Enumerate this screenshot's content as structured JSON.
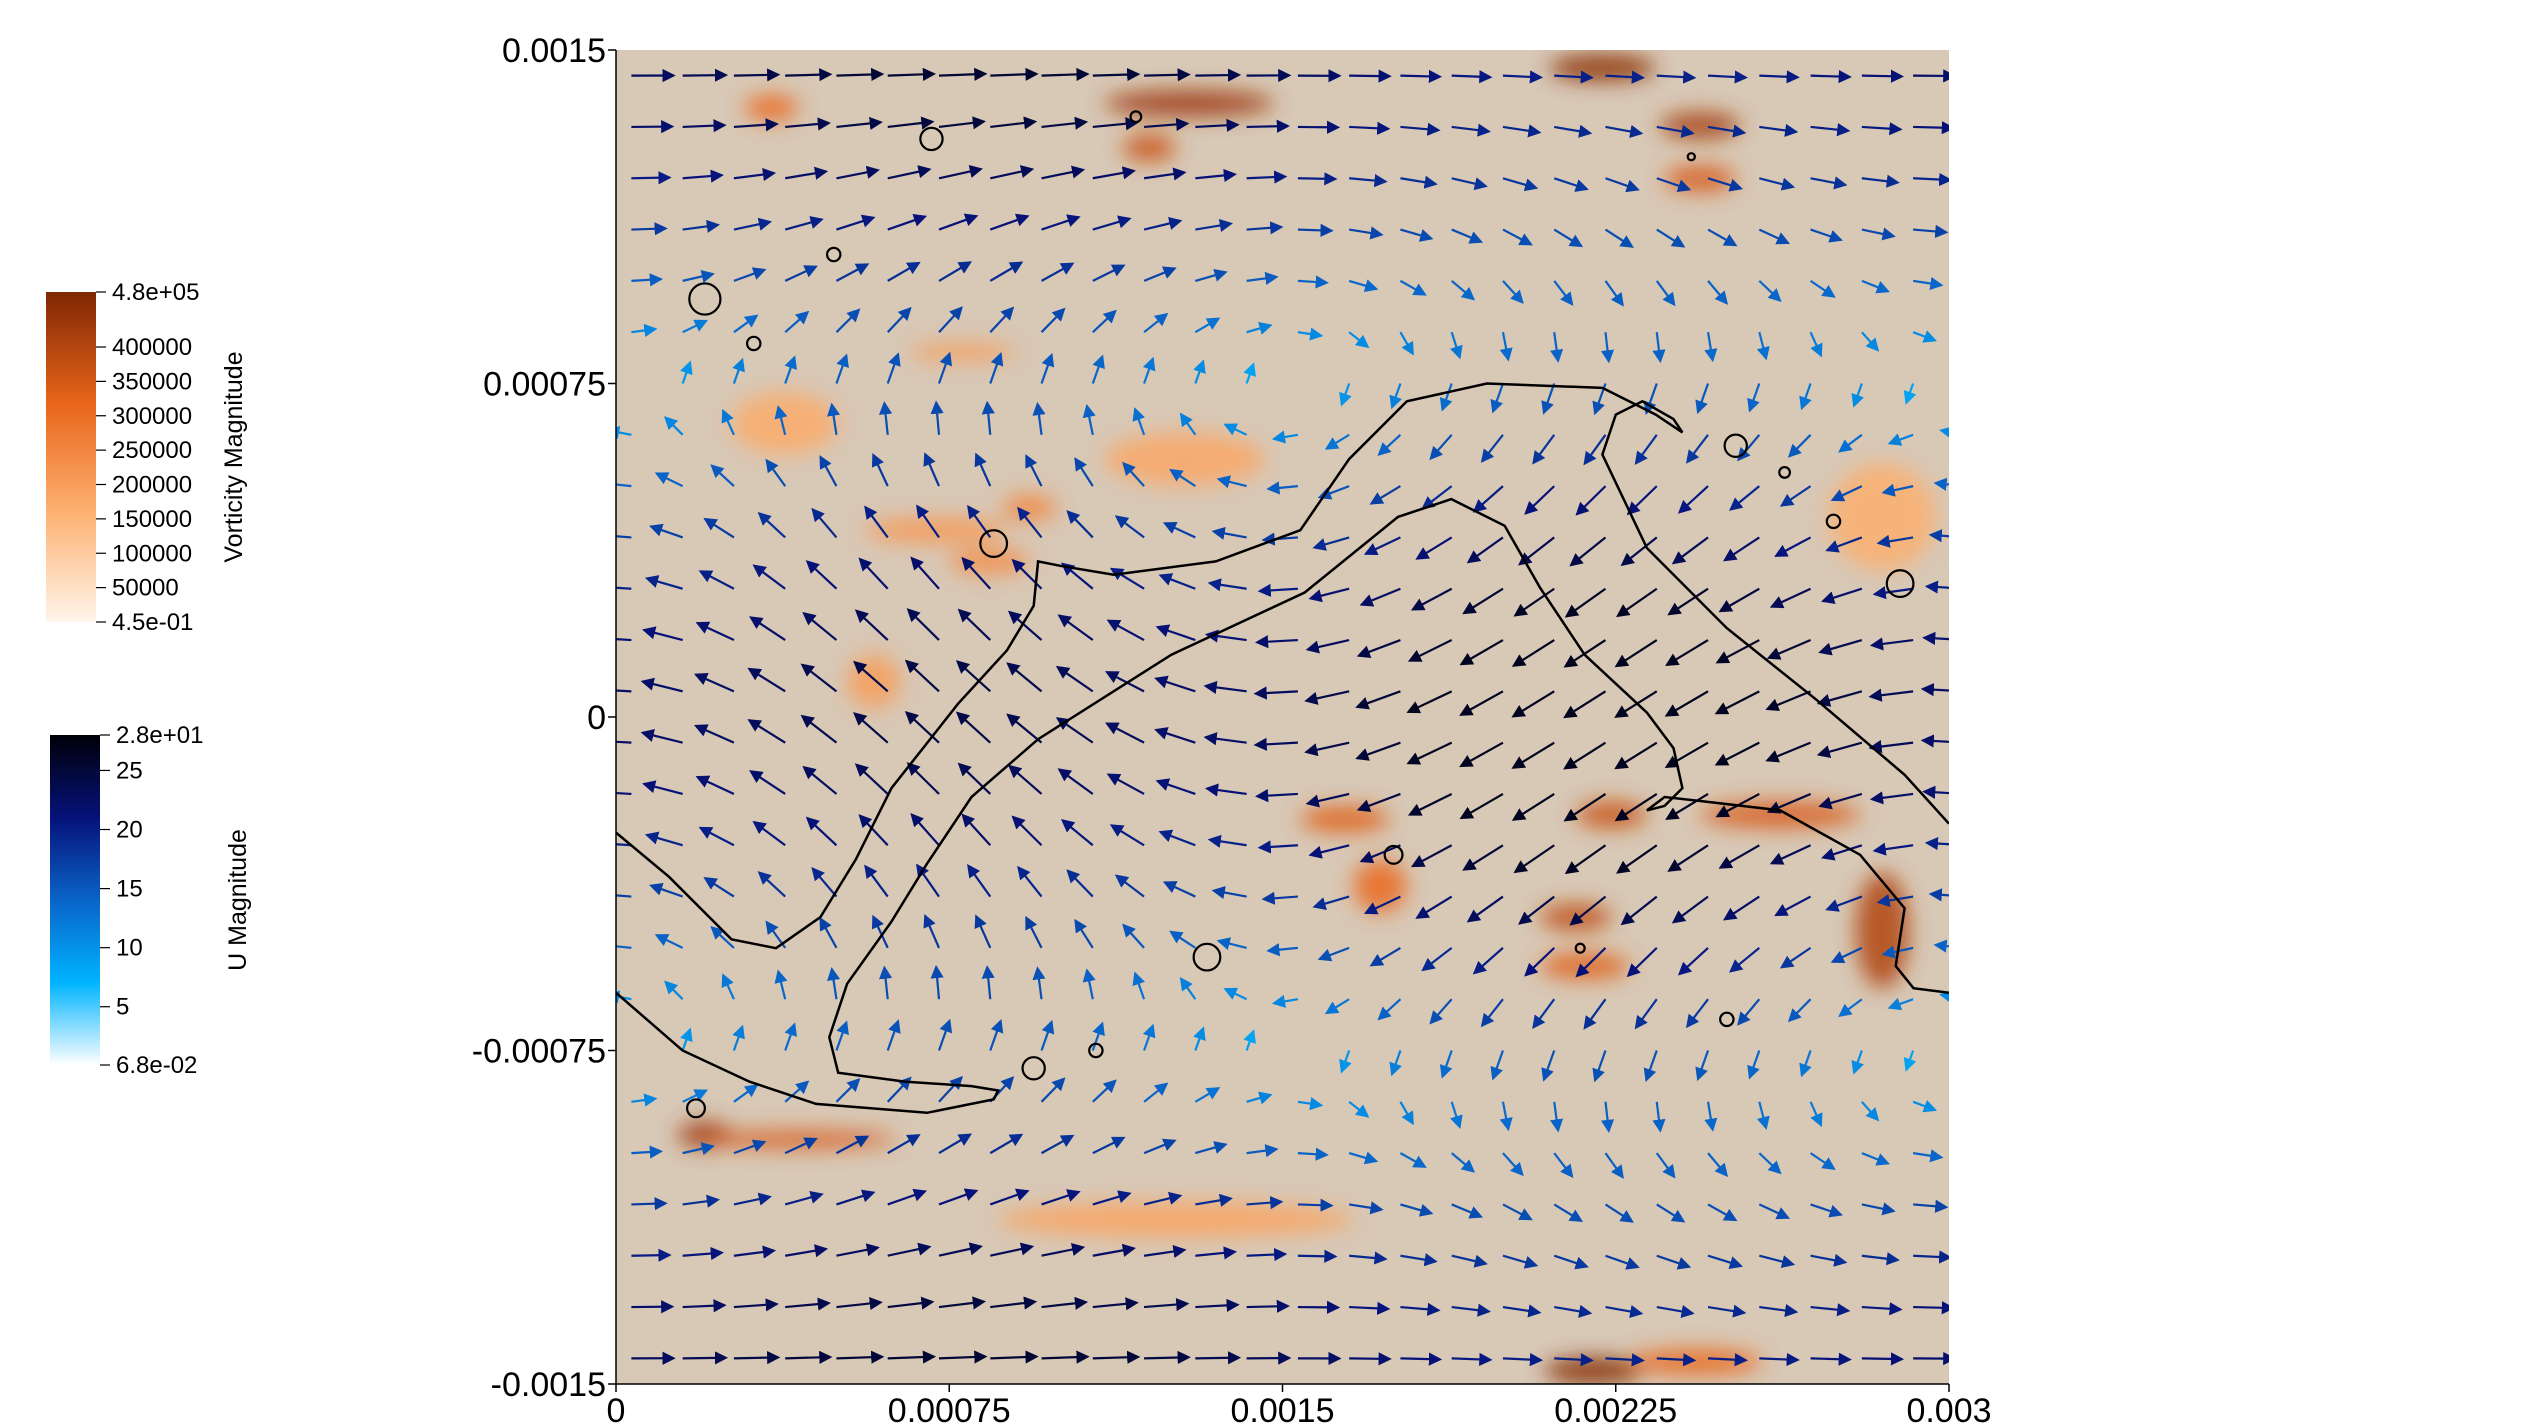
{
  "chart_data": {
    "type": "heatmap",
    "title": "",
    "xlabel": "",
    "ylabel": "",
    "xlim": [
      0,
      0.003
    ],
    "ylim": [
      -0.0015,
      0.0015
    ],
    "x_ticks": [
      {
        "value": 0,
        "label": "0"
      },
      {
        "value": 0.00075,
        "label": "0.00075"
      },
      {
        "value": 0.0015,
        "label": "0.0015"
      },
      {
        "value": 0.00225,
        "label": "0.00225"
      },
      {
        "value": 0.003,
        "label": "0.003"
      }
    ],
    "y_ticks": [
      {
        "value": 0.0015,
        "label": "0.0015"
      },
      {
        "value": 0.00075,
        "label": "0.00075"
      },
      {
        "value": 0,
        "label": "0"
      },
      {
        "value": -0.00075,
        "label": "-0.00075"
      },
      {
        "value": -0.0015,
        "label": "-0.0015"
      }
    ],
    "grid": false,
    "background_color": "#d8c8b6",
    "colorbars": [
      {
        "title": "Vorticity Magnitude",
        "range": [
          0.45,
          480000
        ],
        "colors": [
          "#fff5eb",
          "#fdb171",
          "#e8641a",
          "#7f2704"
        ],
        "labels": [
          {
            "value": 480000,
            "label": "4.8e+05"
          },
          {
            "value": 400000,
            "label": "400000"
          },
          {
            "value": 350000,
            "label": "350000"
          },
          {
            "value": 300000,
            "label": "300000"
          },
          {
            "value": 250000,
            "label": "250000"
          },
          {
            "value": 200000,
            "label": "200000"
          },
          {
            "value": 150000,
            "label": "150000"
          },
          {
            "value": 100000,
            "label": "100000"
          },
          {
            "value": 50000,
            "label": "50000"
          },
          {
            "value": 0.45,
            "label": "4.5e-01"
          }
        ]
      },
      {
        "title": "U Magnitude",
        "range": [
          0.068,
          28
        ],
        "colors": [
          "#ffffff",
          "#00b4ff",
          "#0a64c8",
          "#06127a",
          "#000008"
        ],
        "labels": [
          {
            "value": 28,
            "label": "2.8e+01"
          },
          {
            "value": 25,
            "label": "25"
          },
          {
            "value": 20,
            "label": "20"
          },
          {
            "value": 15,
            "label": "15"
          },
          {
            "value": 10,
            "label": "10"
          },
          {
            "value": 5,
            "label": "5"
          },
          {
            "value": 0.068,
            "label": "6.8e-02"
          }
        ]
      }
    ],
    "vorticity_patches": [
      {
        "x": 0.00035,
        "y": 0.00137,
        "rx": 6e-05,
        "ry": 3e-05,
        "value": 250000
      },
      {
        "x": 0.00129,
        "y": 0.00138,
        "rx": 0.00019,
        "ry": 3e-05,
        "value": 420000
      },
      {
        "x": 0.0012,
        "y": 0.00128,
        "rx": 6e-05,
        "ry": 3e-05,
        "value": 330000
      },
      {
        "x": 0.00222,
        "y": 0.00146,
        "rx": 0.00012,
        "ry": 3e-05,
        "value": 460000
      },
      {
        "x": 0.00244,
        "y": 0.00133,
        "rx": 9e-05,
        "ry": 3e-05,
        "value": 400000
      },
      {
        "x": 0.00244,
        "y": 0.00121,
        "rx": 8e-05,
        "ry": 3e-05,
        "value": 300000
      },
      {
        "x": 0.00078,
        "y": 0.00082,
        "rx": 0.00012,
        "ry": 2e-05,
        "value": 110000
      },
      {
        "x": 0.00128,
        "y": 0.00058,
        "rx": 0.00018,
        "ry": 6e-05,
        "value": 80000
      },
      {
        "x": 0.00072,
        "y": 0.00042,
        "rx": 0.00016,
        "ry": 3e-05,
        "value": 120000
      },
      {
        "x": 0.00084,
        "y": 0.00035,
        "rx": 9e-05,
        "ry": 3e-05,
        "value": 150000
      },
      {
        "x": 0.00058,
        "y": 8e-05,
        "rx": 6e-05,
        "ry": 6e-05,
        "value": 110000
      },
      {
        "x": 0.00093,
        "y": 0.00047,
        "rx": 6e-05,
        "ry": 3e-05,
        "value": 170000
      },
      {
        "x": 0.00164,
        "y": -0.00023,
        "rx": 0.0001,
        "ry": 3e-05,
        "value": 280000
      },
      {
        "x": 0.00172,
        "y": -0.00038,
        "rx": 6e-05,
        "ry": 6e-05,
        "value": 250000
      },
      {
        "x": 0.00216,
        "y": -0.00045,
        "rx": 8e-05,
        "ry": 3e-05,
        "value": 350000
      },
      {
        "x": 0.00218,
        "y": -0.00056,
        "rx": 0.0001,
        "ry": 3e-05,
        "value": 280000
      },
      {
        "x": 0.00224,
        "y": -0.00022,
        "rx": 8e-05,
        "ry": 3e-05,
        "value": 330000
      },
      {
        "x": 0.00262,
        "y": -0.00022,
        "rx": 0.00018,
        "ry": 3e-05,
        "value": 300000
      },
      {
        "x": 0.00285,
        "y": -0.00048,
        "rx": 6e-05,
        "ry": 0.00013,
        "value": 380000
      },
      {
        "x": 0.0002,
        "y": -0.00094,
        "rx": 6e-05,
        "ry": 3e-05,
        "value": 420000
      },
      {
        "x": 0.00041,
        "y": -0.00095,
        "rx": 0.00022,
        "ry": 2e-05,
        "value": 300000
      },
      {
        "x": 0.00126,
        "y": -0.00113,
        "rx": 0.0004,
        "ry": 4e-05,
        "value": 90000
      },
      {
        "x": 0.0022,
        "y": -0.00147,
        "rx": 0.00011,
        "ry": 3e-05,
        "value": 470000
      },
      {
        "x": 0.00243,
        "y": -0.00145,
        "rx": 0.00015,
        "ry": 3e-05,
        "value": 250000
      },
      {
        "x": 0.00038,
        "y": 0.00066,
        "rx": 0.00012,
        "ry": 7e-05,
        "value": 70000
      },
      {
        "x": 0.00285,
        "y": 0.00045,
        "rx": 0.00012,
        "ry": 0.00012,
        "value": 60000
      }
    ],
    "contours": [
      [
        [
          0,
          -0.00026
        ],
        [
          0.00012,
          -0.00036
        ],
        [
          0.00026,
          -0.0005
        ],
        [
          0.00036,
          -0.00052
        ],
        [
          0.00046,
          -0.00045
        ],
        [
          0.00054,
          -0.00032
        ],
        [
          0.00062,
          -0.00016
        ],
        [
          0.00077,
          3e-05
        ],
        [
          0.00088,
          0.00015
        ],
        [
          0.00094,
          0.00025
        ],
        [
          0.00095,
          0.00035
        ],
        [
          0.001,
          0.00034
        ],
        [
          0.00112,
          0.00032
        ],
        [
          0.00135,
          0.00035
        ],
        [
          0.00154,
          0.00042
        ],
        [
          0.00165,
          0.00058
        ],
        [
          0.00178,
          0.00071
        ],
        [
          0.00196,
          0.00075
        ],
        [
          0.00222,
          0.00074
        ],
        [
          0.00234,
          0.00068
        ],
        [
          0.0024,
          0.00064
        ],
        [
          0.00238,
          0.00067
        ],
        [
          0.00231,
          0.00071
        ],
        [
          0.00225,
          0.00068
        ],
        [
          0.00222,
          0.00059
        ],
        [
          0.00232,
          0.00038
        ],
        [
          0.0025,
          0.0002
        ],
        [
          0.0027,
          4e-05
        ],
        [
          0.0029,
          -0.00013
        ],
        [
          0.003,
          -0.00024
        ]
      ],
      [
        [
          0,
          -0.00062
        ],
        [
          0.00015,
          -0.00075
        ],
        [
          0.0003,
          -0.00082
        ],
        [
          0.00045,
          -0.00087
        ],
        [
          0.0007,
          -0.00089
        ],
        [
          0.00085,
          -0.00086
        ],
        [
          0.00086,
          -0.00084
        ],
        [
          0.0008,
          -0.00083
        ],
        [
          0.00065,
          -0.00082
        ],
        [
          0.0005,
          -0.0008
        ],
        [
          0.00048,
          -0.00072
        ],
        [
          0.00052,
          -0.0006
        ],
        [
          0.00062,
          -0.00046
        ],
        [
          0.0007,
          -0.00033
        ],
        [
          0.0008,
          -0.00018
        ],
        [
          0.00095,
          -5e-05
        ],
        [
          0.00125,
          0.00014
        ],
        [
          0.00155,
          0.00028
        ],
        [
          0.00176,
          0.00045
        ],
        [
          0.00188,
          0.00049
        ],
        [
          0.002,
          0.00043
        ],
        [
          0.00208,
          0.00029
        ],
        [
          0.00218,
          0.00014
        ],
        [
          0.00232,
          1e-05
        ],
        [
          0.00238,
          -7e-05
        ],
        [
          0.0024,
          -0.00016
        ],
        [
          0.00236,
          -0.0002
        ],
        [
          0.00232,
          -0.00021
        ],
        [
          0.00236,
          -0.00018
        ],
        [
          0.00245,
          -0.00019
        ],
        [
          0.00262,
          -0.00021
        ],
        [
          0.0028,
          -0.00031
        ],
        [
          0.0029,
          -0.00043
        ],
        [
          0.00288,
          -0.00056
        ],
        [
          0.00292,
          -0.00061
        ],
        [
          0.003,
          -0.00062
        ]
      ]
    ],
    "small_contours": [
      {
        "x": 0.00071,
        "y": 0.0013,
        "r": 2.5e-05
      },
      {
        "x": 0.00117,
        "y": 0.00135,
        "r": 1.2e-05
      },
      {
        "x": 0.00242,
        "y": 0.00126,
        "r": 8e-06
      },
      {
        "x": 0.00049,
        "y": 0.00104,
        "r": 1.5e-05
      },
      {
        "x": 0.0002,
        "y": 0.00094,
        "r": 3.5e-05
      },
      {
        "x": 0.00031,
        "y": 0.00084,
        "r": 1.5e-05
      },
      {
        "x": 0.00085,
        "y": 0.00039,
        "r": 3e-05
      },
      {
        "x": 0.00252,
        "y": 0.00061,
        "r": 2.5e-05
      },
      {
        "x": 0.00263,
        "y": 0.00055,
        "r": 1.2e-05
      },
      {
        "x": 0.00274,
        "y": 0.00044,
        "r": 1.5e-05
      },
      {
        "x": 0.00289,
        "y": 0.0003,
        "r": 3e-05
      },
      {
        "x": 0.00175,
        "y": -0.00031,
        "r": 2e-05
      },
      {
        "x": 0.00133,
        "y": -0.00054,
        "r": 3e-05
      },
      {
        "x": 0.00217,
        "y": -0.00052,
        "r": 1e-05
      },
      {
        "x": 0.0025,
        "y": -0.00068,
        "r": 1.5e-05
      },
      {
        "x": 0.00094,
        "y": -0.00079,
        "r": 2.5e-05
      },
      {
        "x": 0.00108,
        "y": -0.00075,
        "r": 1.5e-05
      },
      {
        "x": 0.00018,
        "y": -0.00088,
        "r": 2e-05
      }
    ]
  }
}
